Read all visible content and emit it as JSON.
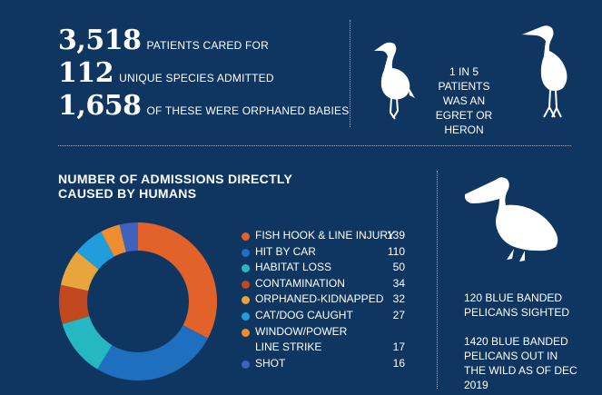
{
  "stats": [
    {
      "number": "3,518",
      "label": "PATIENTS CARED FOR"
    },
    {
      "number": "112",
      "label": "UNIQUE SPECIES ADMITTED"
    },
    {
      "number": "1,658",
      "label": "OF THESE WERE ORPHANED BABIES"
    }
  ],
  "egret_fact": "1 IN 5 PATIENTS WAS AN EGRET OR HERON",
  "pelican_facts": [
    "120 BLUE BANDED PELICANS SIGHTED",
    "1420 BLUE BANDED PELICANS OUT IN THE WILD AS OF DEC 2019"
  ],
  "colors": {
    "background": "#0f3661",
    "text": "#ffffff",
    "divider": "#9fb4cc"
  },
  "chart_data": {
    "type": "pie",
    "title": "NUMBER OF ADMISSIONS DIRECTLY CAUSED BY HUMANS",
    "donut": true,
    "legend_position": "right",
    "categories": [
      "FISH HOOK & LINE INJURY",
      "HIT BY CAR",
      "HABITAT LOSS",
      "CONTAMINATION",
      "ORPHANED-KIDNAPPED",
      "CAT/DOG CAUGHT",
      "WINDOW/POWER LINE STRIKE",
      "SHOT"
    ],
    "values": [
      139,
      110,
      50,
      34,
      32,
      27,
      17,
      16
    ],
    "display_values": [
      "139",
      "110",
      "50",
      "34",
      "32",
      "27",
      "17",
      "16"
    ],
    "colors": [
      "#e2622a",
      "#1f6fc1",
      "#26b8c2",
      "#c2481f",
      "#e8a53e",
      "#1f9ddd",
      "#ef8d33",
      "#3f62bd"
    ]
  }
}
